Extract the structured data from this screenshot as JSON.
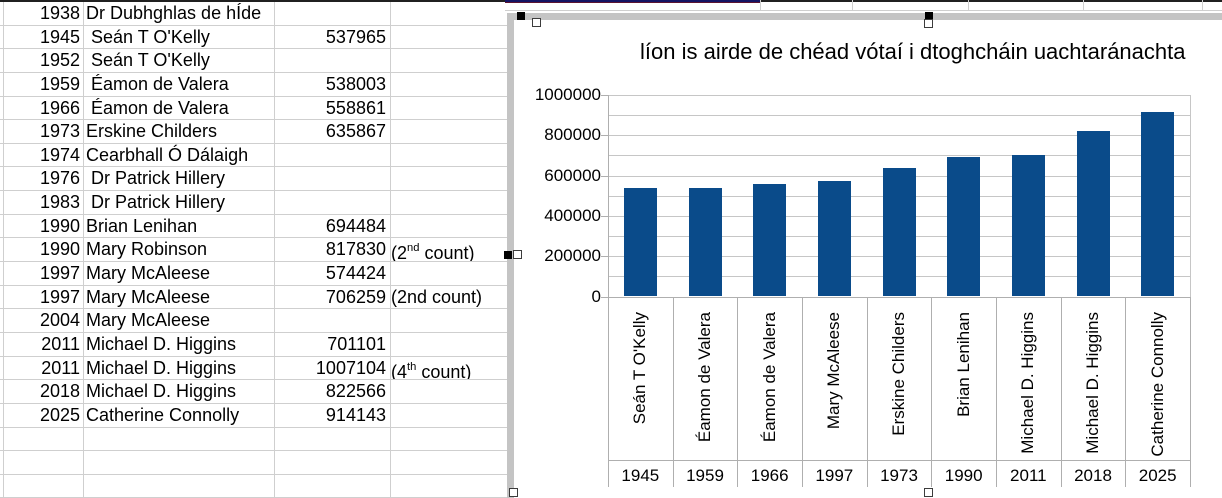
{
  "table": {
    "rows": [
      {
        "year": "1938",
        "name": "Dr Dubhghlas de hÍde",
        "value": "",
        "note": null
      },
      {
        "year": "1945",
        "name": " Seán T O'Kelly",
        "value": "537965",
        "note": null
      },
      {
        "year": "1952",
        "name": " Seán T O'Kelly",
        "value": "",
        "note": null
      },
      {
        "year": "1959",
        "name": " Éamon de Valera",
        "value": "538003",
        "note": null
      },
      {
        "year": "1966",
        "name": " Éamon de Valera",
        "value": "558861",
        "note": null
      },
      {
        "year": "1973",
        "name": "Erskine Childers",
        "value": "635867",
        "note": null
      },
      {
        "year": "1974",
        "name": "Cearbhall Ó Dálaigh",
        "value": "",
        "note": null
      },
      {
        "year": "1976",
        "name": " Dr Patrick Hillery",
        "value": "",
        "note": null
      },
      {
        "year": "1983",
        "name": " Dr Patrick Hillery",
        "value": "",
        "note": null
      },
      {
        "year": "1990",
        "name": "Brian Lenihan",
        "value": "694484",
        "note": null
      },
      {
        "year": "1990",
        "name": "Mary Robinson",
        "value": "817830",
        "note": {
          "pre": "(2",
          "sup": "nd",
          "post": " count)"
        }
      },
      {
        "year": "1997",
        "name": "Mary McAleese",
        "value": "574424",
        "note": null
      },
      {
        "year": "1997",
        "name": "Mary McAleese",
        "value": "706259",
        "note": {
          "pre": "(2nd count)",
          "sup": "",
          "post": ""
        }
      },
      {
        "year": "2004",
        "name": "Mary McAleese",
        "value": "",
        "note": null
      },
      {
        "year": "2011",
        "name": "Michael D. Higgins",
        "value": "701101",
        "note": null
      },
      {
        "year": "2011",
        "name": "Michael D. Higgins",
        "value": "1007104",
        "note": {
          "pre": "(4",
          "sup": "th",
          "post": " count)"
        }
      },
      {
        "year": "2018",
        "name": "Michael D. Higgins",
        "value": "822566",
        "note": null
      },
      {
        "year": "2025",
        "name": "Catherine Connolly",
        "value": "914143",
        "note": null
      },
      {
        "year": "",
        "name": "",
        "value": "",
        "note": null
      },
      {
        "year": "",
        "name": "",
        "value": "",
        "note": null
      },
      {
        "year": "",
        "name": "",
        "value": "",
        "note": null
      }
    ]
  },
  "chart_data": {
    "type": "bar",
    "title": "líon is airde de chéad vótaí i dtoghcháin uachtaránachta",
    "categories": [
      "Seán T O'Kelly",
      "Éamon de Valera",
      "Éamon de Valera",
      "Mary McAleese",
      "Erskine Childers",
      "Brian Lenihan",
      "Michael D. Higgins",
      "Michael D. Higgins",
      "Catherine Connolly"
    ],
    "years": [
      "1945",
      "1959",
      "1966",
      "1997",
      "1973",
      "1990",
      "2011",
      "2018",
      "2025"
    ],
    "values": [
      537965,
      538003,
      558861,
      574424,
      635867,
      694484,
      701101,
      822566,
      914143
    ],
    "yticks": [
      "1000000",
      "800000",
      "600000",
      "400000",
      "200000",
      "0"
    ],
    "ylim": [
      0,
      1000000
    ],
    "minor_grid_interval": 100000,
    "xlabel": "",
    "ylabel": "",
    "grid": true,
    "legend": "none",
    "bar_color": "#0a4b8a"
  },
  "colors": {
    "bar": "#0a4b8a",
    "sheet_grid": "#cfcfcf",
    "chart_grid": "#c6c6c6",
    "chart_axis": "#afafaf",
    "selection_frame": "#c4c4c4",
    "accent_cell_border_top": "#141464",
    "accent_cell_border_bottom": "#5c1430"
  }
}
